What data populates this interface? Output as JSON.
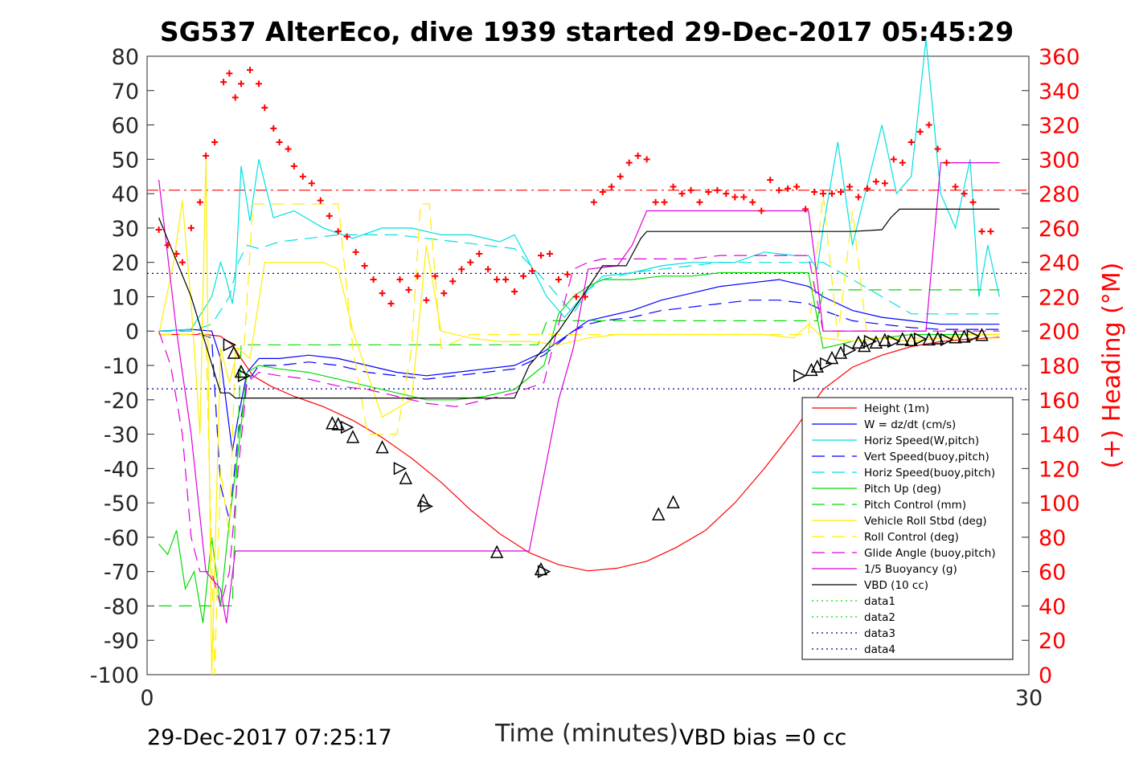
{
  "chart_data": {
    "type": "line",
    "title": "SG537 AlterEco, dive 1939 started 29-Dec-2017 05:45:29",
    "xlabel": "Time (minutes)",
    "ylabel_right": "(+) Heading (°M)",
    "xlim": [
      0,
      30
    ],
    "ylim": [
      -100,
      80
    ],
    "ylim_right": [
      0,
      360
    ],
    "x_ticks": [
      "0",
      "30"
    ],
    "y_ticks": [
      "80",
      "70",
      "60",
      "50",
      "40",
      "30",
      "20",
      "10",
      "0",
      "-10",
      "-20",
      "-30",
      "-40",
      "-50",
      "-60",
      "-70",
      "-80",
      "-90",
      "-100"
    ],
    "y_ticks_right": [
      "360",
      "340",
      "320",
      "300",
      "280",
      "260",
      "240",
      "220",
      "200",
      "180",
      "160",
      "140",
      "120",
      "100",
      "80",
      "60",
      "40",
      "20",
      "0"
    ],
    "footer_left": "29-Dec-2017 07:25:17",
    "footer_right": "VBD bias =0 cc",
    "legend_position": "lower-right",
    "reference_lines": [
      {
        "y": 41,
        "color": "#ff0000",
        "style": "dashdot"
      },
      {
        "y": 16.8,
        "color": "#00008b",
        "style": "dotted"
      },
      {
        "y": -16.8,
        "color": "#00008b",
        "style": "dotted"
      }
    ],
    "series": [
      {
        "name": "Height (1m)",
        "color": "#ff0000",
        "style": "solid",
        "x": [
          0.4,
          1.3,
          2.0,
          2.5,
          2.9,
          3.2,
          3.6,
          4.2,
          5.0,
          6.0,
          7.0,
          8.0,
          9.0,
          10.0,
          11.0,
          12.0,
          13.0,
          14.0,
          15.0,
          16.0,
          17.0,
          18.0,
          19.0,
          20.0,
          21.0,
          22.0,
          23.0,
          24.0,
          25.0,
          26.0,
          27.0,
          28.0,
          29.0
        ],
        "y": [
          -1,
          -1,
          -1,
          -1.5,
          -4,
          -8,
          -13,
          -16,
          -19,
          -22,
          -26,
          -31,
          -37,
          -44,
          -52,
          -59,
          -64.5,
          -68,
          -69.8,
          -69,
          -67,
          -63,
          -58,
          -50,
          -40,
          -29,
          -17,
          -10.5,
          -7,
          -4.5,
          -3,
          -2.3,
          -1.8
        ]
      },
      {
        "name": "W = dz/dt (cm/s)",
        "color": "#0000ff",
        "style": "solid",
        "x": [
          0.4,
          1.5,
          2.2,
          2.5,
          2.9,
          3.1,
          3.4,
          3.8,
          4.5,
          5.5,
          6.5,
          7.5,
          8.5,
          9.5,
          10.5,
          11.5,
          12.5,
          13.5,
          14.5,
          15.0,
          15.5,
          16.5,
          17.5,
          18.5,
          19.5,
          20.5,
          21.5,
          22.5,
          23.0,
          24.0,
          25.0,
          26.0,
          27.0,
          28.0,
          29.0
        ],
        "y": [
          0,
          0.5,
          0,
          -8,
          -35,
          -25,
          -12,
          -8,
          -8,
          -7,
          -8,
          -10,
          -12,
          -13,
          -12,
          -11,
          -10,
          -6,
          0,
          3,
          4,
          6,
          9,
          11,
          13,
          14,
          15,
          13,
          10,
          6,
          4,
          3,
          2,
          2,
          2
        ]
      },
      {
        "name": "Horiz Speed(W,pitch)",
        "color": "#00e0e0",
        "style": "solid",
        "x": [
          0.4,
          1.5,
          2.2,
          2.5,
          2.7,
          2.9,
          3.0,
          3.2,
          3.5,
          3.8,
          4.3,
          5.0,
          6.0,
          7.0,
          8.0,
          9.0,
          10.0,
          11.0,
          12.0,
          12.5,
          13.0,
          13.6,
          14.2,
          15.0,
          15.5,
          16.5,
          17.5,
          18.5,
          19.5,
          20.0,
          21.0,
          22.0,
          22.5,
          22.8,
          23.0,
          23.5,
          24.0,
          25.0,
          25.5,
          26.0,
          26.5,
          27.0,
          27.5,
          28.0,
          28.3,
          28.6,
          29.0
        ],
        "y": [
          0,
          0.5,
          10,
          20,
          15,
          8,
          14,
          48,
          32,
          50,
          33,
          35,
          30,
          27,
          30,
          30,
          28,
          28,
          26,
          28,
          20,
          10,
          4,
          12,
          16,
          17,
          19,
          20,
          20,
          20,
          23,
          22,
          22,
          18,
          30,
          55,
          25,
          60,
          40,
          45,
          85,
          40,
          30,
          50,
          10,
          25,
          10
        ]
      },
      {
        "name": "Vert Speed(buoy,pitch)",
        "color": "#0000ff",
        "style": "dashed",
        "x": [
          0.4,
          1.5,
          2.2,
          2.5,
          2.8,
          3.1,
          3.4,
          3.8,
          4.5,
          5.5,
          6.5,
          7.5,
          8.5,
          9.5,
          10.5,
          11.5,
          12.5,
          13.5,
          14.5,
          15.0,
          15.5,
          16.5,
          17.5,
          18.5,
          19.5,
          20.5,
          21.5,
          22.5,
          23.0,
          24.0,
          25.0,
          26.0,
          27.0,
          28.0,
          29.0
        ],
        "y": [
          0,
          0,
          -2,
          -45,
          -55,
          -30,
          -15,
          -10,
          -10,
          -9,
          -10,
          -12,
          -13,
          -14,
          -13,
          -12,
          -11,
          -7,
          0,
          2,
          3,
          4,
          6,
          7,
          8,
          9,
          9,
          8,
          6,
          3,
          2,
          1,
          0.5,
          0.5,
          0.5
        ]
      },
      {
        "name": "Horiz Speed(buoy,pitch)",
        "color": "#00e0e0",
        "style": "dashed",
        "x": [
          0.4,
          1.5,
          2.2,
          2.5,
          2.8,
          3.1,
          3.4,
          3.8,
          4.5,
          5.5,
          6.5,
          7.5,
          8.5,
          9.5,
          10.5,
          11.5,
          12.5,
          13.5,
          14.5,
          15.0,
          15.5,
          16.5,
          17.5,
          18.5,
          19.5,
          20.5,
          21.5,
          22.5,
          23.0,
          24.0,
          25.0,
          26.0,
          27.0,
          28.0,
          29.0
        ],
        "y": [
          0,
          0,
          2,
          6,
          10,
          20,
          25,
          24,
          26,
          27,
          28,
          28,
          28,
          27,
          26,
          25,
          24,
          15,
          5,
          12,
          15,
          17,
          18,
          19,
          20,
          20,
          20,
          20,
          20,
          15,
          10,
          5,
          5,
          5,
          5
        ]
      },
      {
        "name": "Pitch Up (deg)",
        "color": "#00dd00",
        "style": "solid",
        "x": [
          0.4,
          0.7,
          1.0,
          1.3,
          1.6,
          1.9,
          2.2,
          2.5,
          2.8,
          3.1,
          3.4,
          3.8,
          4.5,
          5.5,
          6.5,
          7.5,
          8.5,
          9.5,
          10.5,
          11.5,
          12.5,
          13.5,
          14.0,
          14.5,
          15.0,
          15.5,
          16.5,
          17.5,
          18.5,
          19.5,
          20.5,
          21.5,
          22.5,
          23.0,
          24.0,
          25.0,
          26.0,
          27.0,
          28.0,
          29.0
        ],
        "y": [
          -62,
          -65,
          -58,
          -75,
          -70,
          -85,
          -60,
          -80,
          -55,
          -35,
          -12,
          -10,
          -11,
          -12,
          -14,
          -16,
          -18,
          -20,
          -20,
          -19,
          -17,
          -10,
          5,
          10,
          13,
          15,
          15,
          16,
          16,
          17,
          17,
          17,
          17,
          -5,
          -3,
          -2,
          -1,
          -1,
          -1,
          -1
        ]
      },
      {
        "name": "Pitch Control (mm)",
        "color": "#00dd00",
        "style": "dashed",
        "x": [
          0.4,
          2.3,
          2.5,
          2.9,
          3.2,
          3.5,
          10.0,
          13.3,
          13.6,
          22.8,
          23.0,
          29.0
        ],
        "y": [
          -80,
          -80,
          -80,
          -80,
          -4,
          -4,
          -4,
          -4,
          3,
          3,
          12,
          12
        ]
      },
      {
        "name": "Vehicle Roll Stbd (deg)",
        "color": "#ffee00",
        "style": "solid",
        "x": [
          0.4,
          0.9,
          1.2,
          1.5,
          1.8,
          2.0,
          2.2,
          2.5,
          2.8,
          3.1,
          3.5,
          4.0,
          5.0,
          6.0,
          6.5,
          7.0,
          8.0,
          9.0,
          9.5,
          10.0,
          11.0,
          12.0,
          13.0,
          14.0,
          15.0,
          16.0,
          17.0,
          18.0,
          19.0,
          20.0,
          21.0,
          22.0,
          22.5,
          23.0,
          24.0,
          25.0,
          26.0,
          27.0,
          28.0,
          29.0
        ],
        "y": [
          -1,
          20,
          38,
          8,
          -30,
          50,
          -100,
          -5,
          -15,
          -5,
          -8,
          20,
          20,
          20,
          18,
          0,
          -25,
          -20,
          25,
          0,
          -2,
          -3,
          -3,
          -4,
          -2,
          -1,
          -1,
          -1,
          -1,
          -1,
          -1,
          -2,
          2,
          -2,
          -3,
          -2,
          -3,
          -2,
          -1,
          -1
        ]
      },
      {
        "name": "Roll Control (deg)",
        "color": "#ffee00",
        "style": "dashed",
        "x": [
          0.4,
          2.0,
          2.3,
          2.5,
          2.8,
          3.0,
          3.3,
          3.6,
          4.0,
          6.0,
          6.5,
          7.0,
          7.5,
          8.0,
          8.5,
          9.0,
          9.3,
          9.6,
          10.0,
          11.0,
          13.0,
          15.0,
          17.0,
          19.0,
          21.0,
          22.5,
          23.0,
          23.5,
          24.0,
          24.5,
          26.0,
          27.0,
          28.0,
          29.0
        ],
        "y": [
          -1,
          -1,
          -100,
          -40,
          -60,
          -5,
          -5,
          37,
          37,
          37,
          37,
          -5,
          -30,
          -30,
          -30,
          -5,
          37,
          37,
          -5,
          -1,
          -1,
          -1,
          -1,
          -1,
          -1,
          -1,
          40,
          -2,
          35,
          -2,
          -2,
          -2,
          -2,
          -2
        ]
      },
      {
        "name": "Glide Angle (buoy,pitch)",
        "color": "#dd00dd",
        "style": "dashed",
        "x": [
          0.4,
          0.8,
          1.2,
          1.5,
          1.8,
          2.2,
          2.5,
          2.8,
          3.1,
          3.4,
          3.8,
          4.5,
          5.5,
          6.5,
          7.5,
          8.5,
          9.5,
          10.5,
          11.5,
          12.5,
          13.5,
          14.0,
          14.5,
          15.0,
          15.5,
          16.5,
          17.5,
          18.5,
          19.5,
          20.5,
          21.5,
          22.5,
          23.0,
          24.0,
          25.0,
          26.0,
          27.0,
          28.0,
          29.0
        ],
        "y": [
          0,
          -10,
          -30,
          -60,
          -70,
          -70,
          -80,
          -70,
          -40,
          -15,
          -12,
          -13,
          -14,
          -16,
          -17,
          -19,
          -21,
          -22,
          -20,
          -18,
          -15,
          2,
          18,
          20,
          21,
          21,
          21,
          21,
          22,
          22,
          22,
          22,
          0,
          0,
          0,
          0,
          0,
          0,
          0
        ]
      },
      {
        "name": "1/5 Buoyancy (g)",
        "color": "#dd00dd",
        "style": "solid",
        "x": [
          0.4,
          1.0,
          1.5,
          2.0,
          2.5,
          2.7,
          3.0,
          12.0,
          13.0,
          14.0,
          14.5,
          15.0,
          16.0,
          16.5,
          17.0,
          22.5,
          22.7,
          23.0,
          26.5,
          27.0,
          28.0,
          29.0
        ],
        "y": [
          44,
          0,
          -30,
          -70,
          -75,
          -85,
          -64,
          -64,
          -64,
          -20,
          -5,
          18,
          19,
          25,
          35,
          35,
          22,
          0,
          0,
          49,
          49,
          49
        ]
      },
      {
        "name": "VBD (10 cc)",
        "color": "#000000",
        "style": "solid",
        "x": [
          0.4,
          1.5,
          2.5,
          2.8,
          3.0,
          4.0,
          10.0,
          11.0,
          11.8,
          12.5,
          13.0,
          14.0,
          14.8,
          15.5,
          16.0,
          16.3,
          16.8,
          17.0,
          23.0,
          24.0,
          25.0,
          25.3,
          25.6,
          29.0
        ],
        "y": [
          33,
          10,
          -18,
          -18,
          -19.5,
          -19.5,
          -19.5,
          -19.5,
          -19.5,
          -19.5,
          -10,
          0,
          10,
          19,
          19,
          19,
          27,
          29,
          29,
          29,
          29.5,
          33,
          35.5,
          35.5
        ]
      },
      {
        "name": "data1",
        "color": "#00dd00",
        "style": "dotted",
        "x": [],
        "y": []
      },
      {
        "name": "data2",
        "color": "#00dd00",
        "style": "dotted",
        "x": [],
        "y": []
      },
      {
        "name": "data3",
        "color": "#00008b",
        "style": "dotted",
        "x": [],
        "y": []
      },
      {
        "name": "data4",
        "color": "#00008b",
        "style": "dotted",
        "x": [],
        "y": []
      }
    ],
    "heading_points": {
      "name": "Heading",
      "color": "#ff0000",
      "marker": "+",
      "x": [
        0.4,
        0.7,
        1.0,
        1.2,
        1.5,
        1.8,
        2.0,
        2.3,
        2.6,
        2.8,
        3.0,
        3.2,
        3.5,
        3.8,
        4.0,
        4.3,
        4.5,
        4.8,
        5.0,
        5.3,
        5.6,
        5.9,
        6.2,
        6.5,
        6.8,
        7.1,
        7.4,
        7.7,
        8.0,
        8.3,
        8.6,
        8.9,
        9.2,
        9.5,
        9.8,
        10.1,
        10.4,
        10.7,
        11.0,
        11.3,
        11.6,
        11.9,
        12.2,
        12.5,
        12.8,
        13.1,
        13.4,
        13.7,
        14.0,
        14.3,
        14.6,
        14.9,
        15.2,
        15.5,
        15.8,
        16.1,
        16.4,
        16.7,
        17.0,
        17.3,
        17.6,
        17.9,
        18.2,
        18.5,
        18.8,
        19.1,
        19.4,
        19.7,
        20.0,
        20.3,
        20.6,
        20.9,
        21.2,
        21.5,
        21.8,
        22.1,
        22.4,
        22.7,
        23.0,
        23.3,
        23.6,
        23.9,
        24.2,
        24.5,
        24.8,
        25.1,
        25.4,
        25.7,
        26.0,
        26.3,
        26.6,
        26.9,
        27.2,
        27.5,
        27.8,
        28.1,
        28.4,
        28.7
      ],
      "y": [
        259,
        250,
        245,
        240,
        260,
        275,
        302,
        310,
        345,
        350,
        336,
        344,
        352,
        344,
        330,
        318,
        310,
        306,
        296,
        290,
        286,
        276,
        267,
        258,
        255,
        246,
        238,
        230,
        222,
        216,
        230,
        224,
        232,
        218,
        232,
        222,
        229,
        236,
        240,
        245,
        236,
        230,
        230,
        223,
        232,
        235,
        244,
        245,
        230,
        233,
        220,
        220,
        275,
        281,
        284,
        290,
        298,
        302,
        300,
        275,
        275,
        284,
        280,
        282,
        275,
        281,
        282,
        280,
        278,
        278,
        275,
        270,
        288,
        282,
        283,
        284,
        271,
        281,
        280,
        280,
        281,
        284,
        278,
        283,
        287,
        286,
        300,
        298,
        310,
        316,
        320,
        306,
        298,
        284,
        280,
        275,
        258,
        258
      ]
    },
    "markers": {
      "triangle_x": [
        2.8,
        2.95,
        3.2,
        3.3,
        6.3,
        6.5,
        6.8,
        7.0,
        8.0,
        8.6,
        8.8,
        9.4,
        9.5,
        11.9,
        13.4,
        13.5,
        17.4,
        17.9,
        22.2,
        22.6,
        22.8,
        23.1,
        23.3,
        23.6,
        23.9,
        24.2,
        24.4,
        24.6,
        24.8,
        25.1,
        25.4,
        25.7,
        26.0,
        26.3,
        26.6,
        26.9,
        27.2,
        27.5,
        27.8,
        28.1,
        28.4
      ],
      "triangle_y": [
        -4,
        -6.5,
        -12,
        -13,
        -27,
        -27.3,
        -28,
        -31,
        -34,
        -40,
        -43,
        -49.5,
        -51,
        -64.5,
        -69.5,
        -70,
        -53.5,
        -50,
        -13,
        -11.5,
        -10.5,
        -9.5,
        -8,
        -6.5,
        -5.5,
        -3.5,
        -4.5,
        -3,
        -3.5,
        -2.8,
        -3,
        -2.5,
        -2.8,
        -2.3,
        -2.6,
        -2.3,
        -2.5,
        -2.0,
        -1.8,
        -1.5,
        -1.3
      ]
    }
  }
}
